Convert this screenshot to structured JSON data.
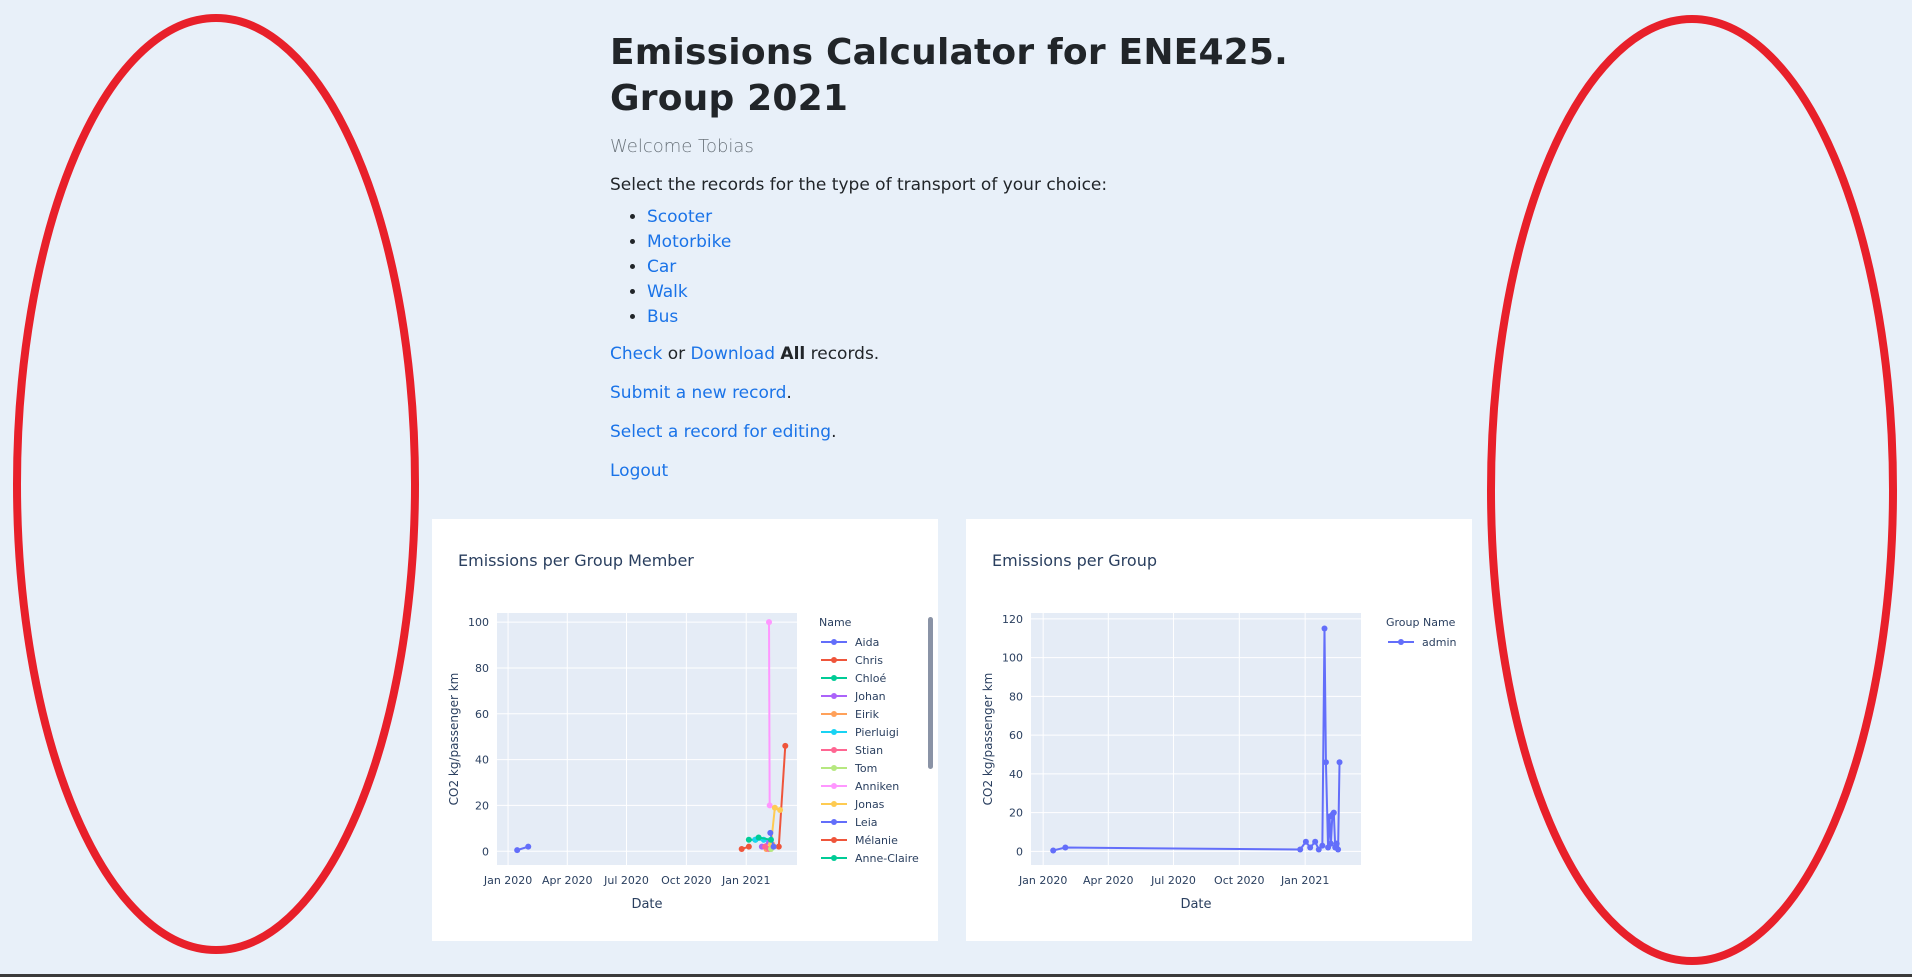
{
  "header": {
    "title": "Emissions Calculator for ENE425. Group 2021",
    "welcome": "Welcome Tobias"
  },
  "intro": "Select the records for the type of transport of your choice:",
  "transport_links": [
    "Scooter",
    "Motorbike",
    "Car",
    "Walk",
    "Bus"
  ],
  "records_line": {
    "check": "Check",
    "or": " or ",
    "download": "Download",
    "all": "All",
    "suffix": " records."
  },
  "submit_line": {
    "link": "Submit a new record",
    "suffix": "."
  },
  "edit_line": {
    "link": "Select a record for editing",
    "suffix": "."
  },
  "logout": "Logout",
  "colors": {
    "background": "#e8f0f9",
    "link": "#1a73e8",
    "plot_bg": "#e5ecf6",
    "annotation": "#e8202a"
  },
  "chart_data": [
    {
      "type": "line",
      "title": "Emissions per Group Member",
      "xlabel": "Date",
      "ylabel": "CO2 kg/passenger km",
      "x_ticks": [
        "Jan 2020",
        "Apr 2020",
        "Jul 2020",
        "Oct 2020",
        "Jan 2021"
      ],
      "xlim": [
        "2019-12-15",
        "2021-03-20"
      ],
      "y_ticks": [
        0,
        20,
        40,
        60,
        80,
        100
      ],
      "ylim": [
        -6,
        104
      ],
      "grid": true,
      "legend_title": "Name",
      "legend_position": "right",
      "series": [
        {
          "name": "Aida",
          "color": "#636efa",
          "points": [
            [
              "2020-01-15",
              0.5
            ],
            [
              "2020-02-01",
              2
            ]
          ]
        },
        {
          "name": "Chris",
          "color": "#ef553b",
          "points": [
            [
              "2021-02-20",
              2
            ],
            [
              "2021-03-02",
              46
            ]
          ]
        },
        {
          "name": "Chloé",
          "color": "#00cc96",
          "points": [
            [
              "2021-01-05",
              5
            ],
            [
              "2021-01-15",
              5
            ]
          ]
        },
        {
          "name": "Johan",
          "color": "#ab63fa",
          "points": [
            [
              "2021-01-25",
              2
            ],
            [
              "2021-02-05",
              4
            ]
          ]
        },
        {
          "name": "Eirik",
          "color": "#ffa15a",
          "points": [
            [
              "2021-02-01",
              1
            ],
            [
              "2021-02-10",
              3
            ]
          ]
        },
        {
          "name": "Pierluigi",
          "color": "#19d3f3",
          "points": [
            [
              "2021-01-15",
              5
            ],
            [
              "2021-01-28",
              5
            ]
          ]
        },
        {
          "name": "Stian",
          "color": "#ff6692",
          "points": [
            [
              "2021-01-30",
              2
            ],
            [
              "2021-02-05",
              1
            ]
          ]
        },
        {
          "name": "Tom",
          "color": "#b6e880",
          "points": [
            [
              "2021-02-08",
              1
            ],
            [
              "2021-02-12",
              2
            ]
          ]
        },
        {
          "name": "Anniken",
          "color": "#ff97ff",
          "points": [
            [
              "2021-02-05",
              100
            ],
            [
              "2021-02-06",
              20
            ]
          ]
        },
        {
          "name": "Jonas",
          "color": "#fecb52",
          "points": [
            [
              "2021-02-08",
              3
            ],
            [
              "2021-02-14",
              19
            ],
            [
              "2021-02-22",
              18
            ]
          ]
        },
        {
          "name": "Leia",
          "color": "#636efa",
          "points": [
            [
              "2021-02-07",
              8
            ],
            [
              "2021-02-12",
              2
            ]
          ]
        },
        {
          "name": "Mélanie",
          "color": "#ef553b",
          "points": [
            [
              "2020-12-25",
              1
            ],
            [
              "2021-01-05",
              2
            ]
          ]
        },
        {
          "name": "Anne-Claire",
          "color": "#00cc96",
          "points": [
            [
              "2021-01-20",
              6
            ],
            [
              "2021-02-08",
              5
            ]
          ]
        }
      ]
    },
    {
      "type": "line",
      "title": "Emissions per Group",
      "xlabel": "Date",
      "ylabel": "CO2 kg/passenger km",
      "x_ticks": [
        "Jan 2020",
        "Apr 2020",
        "Jul 2020",
        "Oct 2020",
        "Jan 2021"
      ],
      "xlim": [
        "2019-12-15",
        "2021-03-20"
      ],
      "y_ticks": [
        0,
        20,
        40,
        60,
        80,
        100,
        120
      ],
      "ylim": [
        -7,
        123
      ],
      "grid": true,
      "legend_title": "Group Name",
      "legend_position": "right",
      "series": [
        {
          "name": "admin",
          "color": "#636efa",
          "points": [
            [
              "2020-01-15",
              0.5
            ],
            [
              "2020-02-01",
              2
            ],
            [
              "2020-12-25",
              1
            ],
            [
              "2021-01-02",
              5
            ],
            [
              "2021-01-08",
              2
            ],
            [
              "2021-01-15",
              5
            ],
            [
              "2021-01-20",
              1
            ],
            [
              "2021-01-25",
              3
            ],
            [
              "2021-01-28",
              115
            ],
            [
              "2021-01-30",
              46
            ],
            [
              "2021-02-02",
              2
            ],
            [
              "2021-02-04",
              18
            ],
            [
              "2021-02-06",
              4
            ],
            [
              "2021-02-08",
              19
            ],
            [
              "2021-02-10",
              20
            ],
            [
              "2021-02-12",
              2
            ],
            [
              "2021-02-14",
              4
            ],
            [
              "2021-02-16",
              1
            ],
            [
              "2021-02-18",
              46
            ]
          ]
        }
      ]
    }
  ]
}
